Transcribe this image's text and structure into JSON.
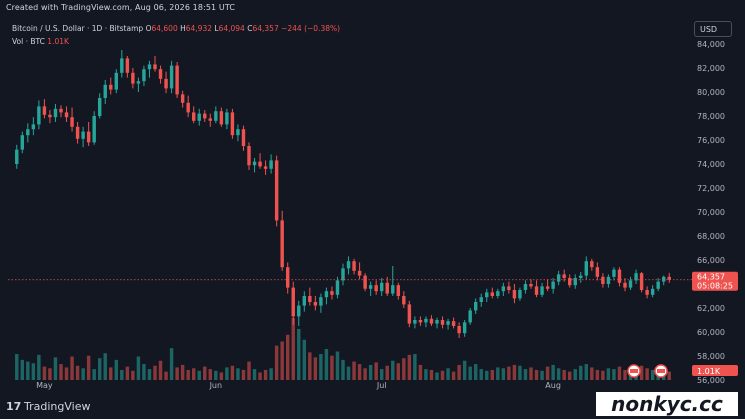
{
  "top_note": "Created with TradingView.com, Aug 06, 2026 18:51 UTC",
  "header": {
    "symbol": "Bitcoin / U.S. Dollar · 1D · Bitstamp",
    "o_label": "O",
    "o_value": "64,600",
    "h_label": "H",
    "h_value": "64,932",
    "l_label": "L",
    "l_value": "64,094",
    "c_label": "C",
    "c_value": "64,357",
    "change": "−244 (−0.38%)"
  },
  "volume_row": {
    "label": "Vol · BTC",
    "value": "1.01K"
  },
  "currency_button": "USD",
  "last_price": {
    "value": "64,357",
    "countdown": "05:08:25",
    "volume_tag": "1.01K"
  },
  "footer": {
    "logo_mark": "17",
    "logo_text": "TradingView",
    "watermark": "nonkyc.cc"
  },
  "colors": {
    "up": "#26a69a",
    "down": "#ef5350",
    "background": "#131722",
    "axis_text": "#b2b5be"
  },
  "chart_data": {
    "type": "candlestick",
    "y_ticks": [
      "84,000",
      "82,000",
      "80,000",
      "78,000",
      "76,000",
      "74,000",
      "72,000",
      "70,000",
      "68,000",
      "66,000",
      "64,000",
      "62,000",
      "60,000",
      "58,000",
      "56,000"
    ],
    "x_ticks": [
      "May",
      "Jun",
      "Jul",
      "Aug"
    ],
    "ylim": [
      56000,
      84000
    ],
    "candles": [
      [
        74000,
        75600,
        73600,
        75200
      ],
      [
        75200,
        76700,
        74900,
        76400
      ],
      [
        76400,
        77400,
        75800,
        76900
      ],
      [
        76900,
        77900,
        76400,
        77300
      ],
      [
        77300,
        79300,
        76900,
        78800
      ],
      [
        78800,
        79400,
        77800,
        78100
      ],
      [
        78100,
        78500,
        77400,
        77900
      ],
      [
        77900,
        79000,
        77500,
        78600
      ],
      [
        78600,
        78900,
        77900,
        78300
      ],
      [
        78300,
        78800,
        77500,
        77900
      ],
      [
        77900,
        78700,
        76700,
        77100
      ],
      [
        77100,
        77500,
        75700,
        76100
      ],
      [
        76100,
        77100,
        75400,
        76700
      ],
      [
        76700,
        77500,
        75500,
        75800
      ],
      [
        75800,
        78400,
        75600,
        78000
      ],
      [
        78000,
        79900,
        77800,
        79500
      ],
      [
        79500,
        81000,
        79000,
        80600
      ],
      [
        80600,
        81200,
        79800,
        80200
      ],
      [
        80200,
        81900,
        79900,
        81600
      ],
      [
        81600,
        83500,
        81200,
        82800
      ],
      [
        82800,
        83000,
        81200,
        81600
      ],
      [
        81600,
        82000,
        80300,
        80700
      ],
      [
        80700,
        81200,
        80000,
        80900
      ],
      [
        80900,
        82200,
        80500,
        81900
      ],
      [
        81900,
        82600,
        81200,
        82300
      ],
      [
        82300,
        83000,
        81700,
        81900
      ],
      [
        81900,
        82200,
        80700,
        81100
      ],
      [
        81100,
        81700,
        79900,
        80300
      ],
      [
        80300,
        82600,
        79900,
        82200
      ],
      [
        82200,
        82500,
        79500,
        79800
      ],
      [
        79800,
        80100,
        78700,
        79100
      ],
      [
        79100,
        79700,
        77900,
        78300
      ],
      [
        78300,
        78800,
        77400,
        77600
      ],
      [
        77600,
        78600,
        77200,
        78200
      ],
      [
        78200,
        78500,
        77500,
        77800
      ],
      [
        77800,
        78200,
        77100,
        77600
      ],
      [
        77600,
        78800,
        77400,
        78400
      ],
      [
        78400,
        78700,
        77100,
        77300
      ],
      [
        77300,
        78600,
        76900,
        78300
      ],
      [
        78300,
        78600,
        76100,
        76400
      ],
      [
        76400,
        77300,
        75900,
        76900
      ],
      [
        76900,
        77200,
        75100,
        75500
      ],
      [
        75500,
        75800,
        73500,
        73900
      ],
      [
        73900,
        74500,
        73300,
        74200
      ],
      [
        74200,
        74900,
        73600,
        73800
      ],
      [
        73800,
        74300,
        73100,
        73600
      ],
      [
        73600,
        74800,
        73200,
        74300
      ],
      [
        74300,
        74700,
        68800,
        69300
      ],
      [
        69300,
        70100,
        65100,
        65400
      ],
      [
        65400,
        65800,
        63200,
        63700
      ],
      [
        63700,
        64200,
        60600,
        61300
      ],
      [
        61300,
        62600,
        60500,
        62200
      ],
      [
        62200,
        63400,
        61700,
        63000
      ],
      [
        63000,
        63700,
        62200,
        62500
      ],
      [
        62500,
        63000,
        61800,
        62200
      ],
      [
        62200,
        63200,
        61600,
        62900
      ],
      [
        62900,
        63700,
        62300,
        63400
      ],
      [
        63400,
        63800,
        62700,
        63100
      ],
      [
        63100,
        64600,
        62800,
        64300
      ],
      [
        64300,
        65700,
        63900,
        65300
      ],
      [
        65300,
        66300,
        64800,
        65900
      ],
      [
        65900,
        66100,
        64800,
        65100
      ],
      [
        65100,
        65800,
        64400,
        64700
      ],
      [
        64700,
        64900,
        63400,
        63600
      ],
      [
        63600,
        64200,
        63000,
        63900
      ],
      [
        63900,
        64300,
        63100,
        63400
      ],
      [
        63400,
        64500,
        63000,
        64100
      ],
      [
        64100,
        64600,
        63000,
        63200
      ],
      [
        63200,
        65500,
        63000,
        63900
      ],
      [
        63900,
        64100,
        62700,
        63000
      ],
      [
        63000,
        63400,
        62000,
        62300
      ],
      [
        62300,
        62600,
        60400,
        60700
      ],
      [
        60700,
        61300,
        60300,
        61000
      ],
      [
        61000,
        61300,
        60500,
        60800
      ],
      [
        60800,
        61300,
        60400,
        61100
      ],
      [
        61100,
        61400,
        60500,
        60700
      ],
      [
        60700,
        61200,
        60300,
        61000
      ],
      [
        61000,
        61300,
        60300,
        60600
      ],
      [
        60600,
        61100,
        60200,
        60900
      ],
      [
        60900,
        61200,
        60300,
        60500
      ],
      [
        60500,
        60800,
        59500,
        59900
      ],
      [
        59900,
        61000,
        59600,
        60800
      ],
      [
        60800,
        62000,
        60600,
        61800
      ],
      [
        61800,
        62800,
        61500,
        62500
      ],
      [
        62500,
        63200,
        62100,
        62900
      ],
      [
        62900,
        63600,
        62500,
        63300
      ],
      [
        63300,
        63700,
        62800,
        63000
      ],
      [
        63000,
        63600,
        62800,
        63400
      ],
      [
        63400,
        64100,
        63000,
        63800
      ],
      [
        63800,
        64200,
        63200,
        63500
      ],
      [
        63500,
        64000,
        62400,
        62800
      ],
      [
        62800,
        63700,
        62600,
        63500
      ],
      [
        63500,
        64300,
        63200,
        64000
      ],
      [
        64000,
        64400,
        63600,
        63800
      ],
      [
        63800,
        64300,
        62900,
        63100
      ],
      [
        63100,
        64100,
        62900,
        63800
      ],
      [
        63800,
        64400,
        63400,
        63600
      ],
      [
        63600,
        64500,
        63200,
        64200
      ],
      [
        64200,
        65100,
        63900,
        64800
      ],
      [
        64800,
        65200,
        64200,
        64500
      ],
      [
        64500,
        64800,
        63700,
        63900
      ],
      [
        63900,
        64800,
        63600,
        64500
      ],
      [
        64500,
        65000,
        64100,
        64700
      ],
      [
        64700,
        66300,
        64400,
        65900
      ],
      [
        65900,
        66100,
        65100,
        65400
      ],
      [
        65400,
        65800,
        64300,
        64600
      ],
      [
        64600,
        64900,
        63700,
        64000
      ],
      [
        64000,
        64800,
        63700,
        64600
      ],
      [
        64600,
        65400,
        64300,
        65200
      ],
      [
        65200,
        65400,
        63800,
        64100
      ],
      [
        64100,
        64500,
        63400,
        63700
      ],
      [
        63700,
        64600,
        63500,
        64300
      ],
      [
        64300,
        65200,
        64000,
        64900
      ],
      [
        64900,
        65000,
        63300,
        63500
      ],
      [
        63500,
        63800,
        62800,
        63100
      ],
      [
        63100,
        63900,
        62900,
        63600
      ],
      [
        63600,
        64500,
        63400,
        64200
      ],
      [
        64200,
        64700,
        63900,
        64600
      ],
      [
        64600,
        64932,
        64094,
        64357
      ]
    ],
    "volume": [
      3.1,
      2.4,
      2.2,
      2.0,
      3.0,
      1.6,
      1.4,
      2.7,
      1.9,
      1.5,
      2.8,
      1.7,
      1.4,
      2.9,
      1.3,
      2.6,
      3.2,
      1.5,
      2.4,
      1.2,
      1.6,
      1.1,
      2.8,
      1.9,
      1.3,
      1.7,
      2.3,
      1.0,
      3.8,
      1.5,
      1.8,
      1.2,
      1.4,
      1.1,
      1.6,
      1.3,
      1.1,
      0.9,
      1.5,
      1.7,
      1.4,
      1.2,
      2.2,
      1.3,
      0.9,
      1.2,
      1.4,
      4.1,
      4.6,
      5.4,
      7.4,
      6.1,
      4.8,
      3.3,
      2.7,
      3.1,
      3.7,
      2.9,
      3.4,
      2.4,
      1.6,
      2.2,
      1.9,
      1.4,
      1.8,
      2.1,
      1.3,
      1.7,
      2.3,
      2.0,
      2.6,
      3.0,
      3.1,
      1.8,
      1.3,
      1.2,
      0.9,
      1.1,
      1.4,
      1.0,
      1.8,
      2.3,
      1.6,
      1.9,
      1.3,
      1.1,
      1.2,
      1.5,
      1.4,
      1.6,
      1.8,
      1.7,
      1.3,
      1.5,
      1.2,
      1.1,
      1.6,
      1.8,
      1.4,
      1.2,
      1.0,
      1.3,
      1.7,
      1.9,
      1.5,
      1.2,
      1.1,
      1.4,
      1.3,
      1.6,
      1.2,
      1.0,
      1.3,
      1.7,
      1.4,
      1.2,
      1.1,
      0.9,
      1.0
    ]
  }
}
